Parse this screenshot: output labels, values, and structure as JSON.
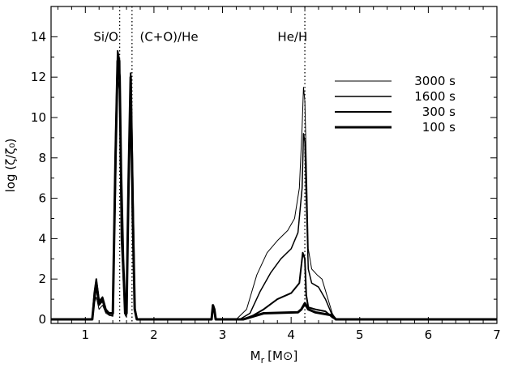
{
  "chart_data": {
    "type": "line",
    "xlabel": "M",
    "xlabel_sub": "r",
    "xlabel_unit": "[M",
    "xlabel_unit_close": "]",
    "ylabel": "log (ζ/ζ₀)",
    "xlim": [
      0.5,
      7
    ],
    "ylim": [
      -0.2,
      15.5
    ],
    "xticks": [
      1,
      2,
      3,
      4,
      5,
      6,
      7
    ],
    "yticks": [
      0,
      2,
      4,
      6,
      8,
      10,
      12,
      14
    ],
    "vlines": [
      1.5,
      1.68,
      4.2
    ],
    "annotations": [
      {
        "text": "Si/O",
        "x": 1.3,
        "y": 14.0
      },
      {
        "text": "(C+O)/He",
        "x": 2.22,
        "y": 14.0
      },
      {
        "text": "He/H",
        "x": 4.02,
        "y": 14.0
      }
    ],
    "legend_position": "top-right",
    "series": [
      {
        "name": "3000 s",
        "width": 1,
        "x": [
          0.5,
          1.1,
          1.13,
          1.16,
          1.2,
          1.25,
          1.3,
          1.35,
          1.4,
          1.44,
          1.47,
          1.5,
          1.52,
          1.55,
          1.58,
          1.6,
          1.63,
          1.66,
          1.69,
          1.72,
          1.75,
          2.84,
          2.86,
          2.88,
          2.9,
          3.2,
          3.35,
          3.5,
          3.65,
          3.8,
          3.95,
          4.05,
          4.12,
          4.16,
          4.18,
          4.2,
          4.22,
          4.25,
          4.3,
          4.38,
          4.45,
          4.52,
          4.6,
          4.65,
          7
        ],
        "y": [
          0,
          0,
          0.8,
          1.1,
          0.5,
          0.7,
          0.3,
          0.2,
          0.15,
          6.0,
          12.0,
          11.2,
          4.0,
          2.0,
          0.2,
          0.1,
          5.0,
          10.5,
          5.8,
          0.4,
          0,
          0,
          0.5,
          0.3,
          0,
          0,
          0.5,
          2.2,
          3.3,
          3.9,
          4.4,
          5.0,
          6.5,
          9.5,
          11.5,
          10.8,
          8.0,
          3.5,
          2.5,
          2.2,
          2.0,
          1.2,
          0.3,
          0,
          0
        ]
      },
      {
        "name": "1600 s",
        "width": 1.5,
        "x": [
          0.5,
          1.1,
          1.13,
          1.16,
          1.2,
          1.25,
          1.3,
          1.35,
          1.4,
          1.44,
          1.47,
          1.5,
          1.52,
          1.55,
          1.58,
          1.6,
          1.63,
          1.66,
          1.69,
          1.72,
          1.75,
          2.84,
          2.86,
          2.88,
          2.9,
          3.25,
          3.4,
          3.55,
          3.7,
          3.85,
          4.0,
          4.1,
          4.16,
          4.18,
          4.2,
          4.22,
          4.25,
          4.3,
          4.4,
          4.5,
          4.6,
          4.65,
          7
        ],
        "y": [
          0,
          0,
          1.0,
          1.5,
          0.7,
          0.9,
          0.4,
          0.2,
          0.2,
          7.5,
          13.2,
          12.5,
          5.0,
          2.5,
          0.3,
          0.2,
          6.0,
          12.0,
          6.5,
          0.5,
          0,
          0,
          0.6,
          0.4,
          0,
          0,
          0.3,
          1.4,
          2.3,
          3.0,
          3.5,
          4.3,
          6.5,
          9.2,
          8.8,
          6.0,
          2.5,
          1.8,
          1.6,
          1.0,
          0.2,
          0,
          0
        ]
      },
      {
        "name": "300 s",
        "width": 2,
        "x": [
          0.5,
          1.1,
          1.13,
          1.16,
          1.2,
          1.25,
          1.3,
          1.35,
          1.4,
          1.44,
          1.47,
          1.5,
          1.52,
          1.55,
          1.58,
          1.6,
          1.63,
          1.66,
          1.69,
          1.72,
          1.75,
          2.84,
          2.86,
          2.88,
          2.9,
          3.3,
          3.45,
          3.6,
          3.8,
          4.0,
          4.12,
          4.17,
          4.2,
          4.22,
          4.25,
          4.35,
          4.5,
          4.6,
          4.65,
          7
        ],
        "y": [
          0,
          0,
          1.3,
          2.0,
          0.9,
          1.1,
          0.5,
          0.3,
          0.3,
          8.5,
          13.3,
          12.8,
          6.5,
          3.0,
          0.3,
          0.3,
          7.0,
          12.2,
          7.0,
          0.6,
          0,
          0,
          0.7,
          0.5,
          0,
          0,
          0.2,
          0.5,
          1.0,
          1.3,
          1.8,
          3.3,
          3.0,
          1.2,
          0.6,
          0.5,
          0.4,
          0.1,
          0,
          0
        ]
      },
      {
        "name": "100 s",
        "width": 3,
        "x": [
          0.5,
          1.1,
          1.13,
          1.16,
          1.2,
          1.25,
          1.3,
          1.35,
          1.4,
          1.44,
          1.47,
          1.5,
          1.52,
          1.55,
          1.58,
          1.6,
          1.63,
          1.66,
          1.69,
          1.72,
          1.75,
          2.84,
          2.86,
          2.88,
          2.9,
          3.3,
          3.6,
          4.1,
          4.15,
          4.2,
          4.25,
          4.35,
          4.6,
          4.65,
          7
        ],
        "y": [
          0,
          0,
          1.0,
          1.8,
          0.8,
          1.0,
          0.4,
          0.3,
          0.3,
          8.0,
          12.8,
          12.0,
          7.3,
          3.0,
          0.3,
          0.3,
          6.8,
          12.0,
          5.3,
          0.5,
          0,
          0,
          0.7,
          0.5,
          0,
          0,
          0.3,
          0.35,
          0.5,
          0.8,
          0.5,
          0.35,
          0.2,
          0,
          0
        ]
      }
    ]
  }
}
